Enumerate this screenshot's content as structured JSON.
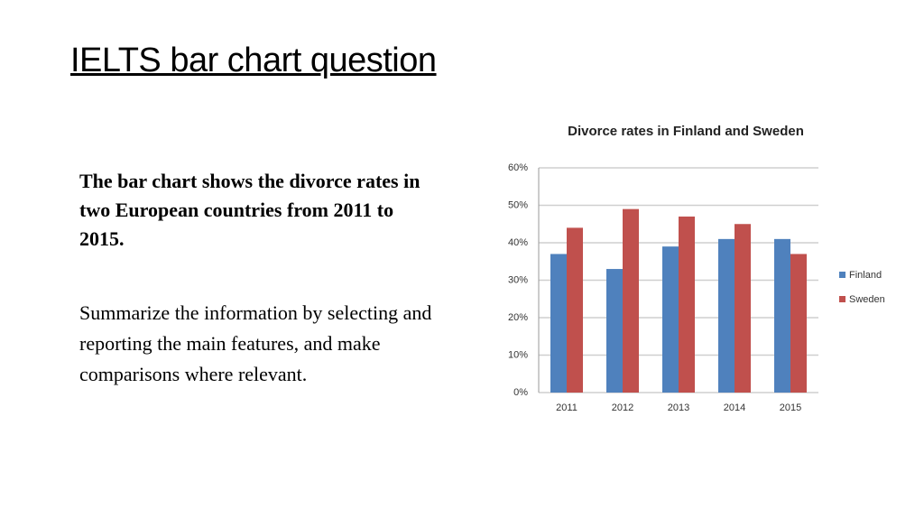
{
  "slide": {
    "title": "IELTS bar chart question",
    "prompt": "The bar chart shows the divorce rates in two European countries from 2011 to 2015.",
    "task": "Summarize the information by selecting and reporting the main features, and make comparisons where relevant."
  },
  "chart_data": {
    "type": "bar",
    "title": "Divorce rates in Finland and Sweden",
    "categories": [
      "2011",
      "2012",
      "2013",
      "2014",
      "2015"
    ],
    "series": [
      {
        "name": "Finland",
        "color": "#4f81bd",
        "values": [
          37,
          33,
          39,
          41,
          41
        ]
      },
      {
        "name": "Sweden",
        "color": "#c0504d",
        "values": [
          44,
          49,
          47,
          45,
          37
        ]
      }
    ],
    "ylim": [
      0,
      60
    ],
    "yticks": [
      {
        "value": 0,
        "label": "0%"
      },
      {
        "value": 10,
        "label": "10%"
      },
      {
        "value": 20,
        "label": "20%"
      },
      {
        "value": 30,
        "label": "30%"
      },
      {
        "value": 40,
        "label": "40%"
      },
      {
        "value": 50,
        "label": "50%"
      },
      {
        "value": 60,
        "label": "60%"
      }
    ],
    "grid": true,
    "legend": "right"
  }
}
